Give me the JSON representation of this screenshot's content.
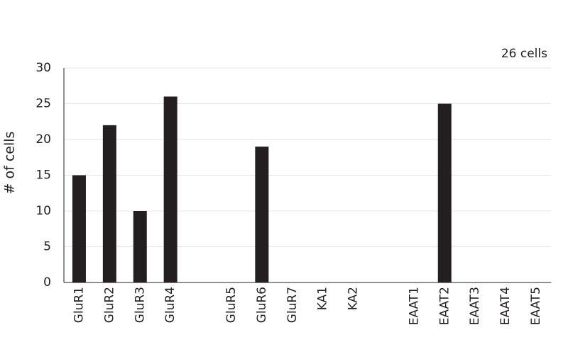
{
  "chart_data": {
    "type": "bar",
    "annotation": "26 cells",
    "y_label": "# of cells",
    "categories": [
      "GluR1",
      "GluR2",
      "GluR3",
      "GluR4",
      null,
      "GluR5",
      "GluR6",
      "GluR7",
      "KA1",
      "KA2",
      null,
      "EAAT1",
      "EAAT2",
      "EAAT3",
      "EAAT4",
      "EAAT5"
    ],
    "values": [
      15,
      22,
      10,
      26,
      null,
      0,
      19,
      0,
      0,
      0,
      null,
      0,
      25,
      0,
      0,
      0
    ],
    "color": "#231f20",
    "ylim": [
      0,
      30
    ],
    "yticks": [
      0,
      5,
      10,
      15,
      20,
      25,
      30
    ],
    "grid": true
  }
}
